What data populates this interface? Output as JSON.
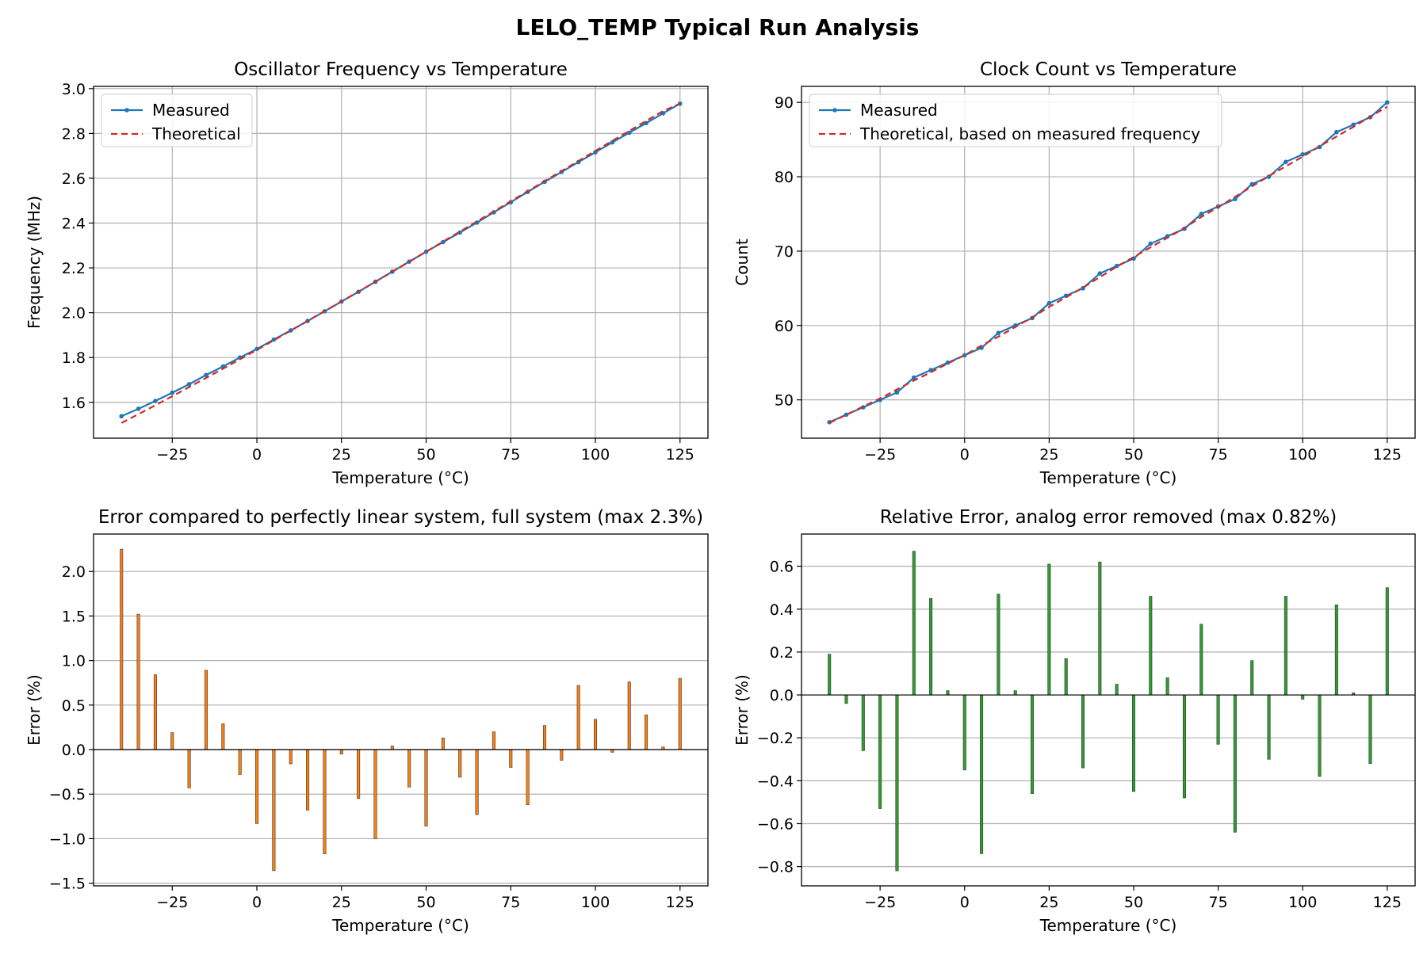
{
  "figure": {
    "title": "LELO_TEMP Typical Run Analysis"
  },
  "colors": {
    "measured": "#1f77b4",
    "theoretical": "#d62728",
    "error_bars": "#ff7f0e",
    "relative_bars": "#2ca02c",
    "grid": "#b0b0b0",
    "bar_edge": "#333333"
  },
  "chart_data": [
    {
      "type": "line",
      "title": "Oscillator Frequency vs Temperature",
      "xlabel": "Temperature (°C)",
      "ylabel": "Frequency (MHz)",
      "xlim": [
        -48.25,
        133.25
      ],
      "ylim": [
        1.44,
        3.01
      ],
      "xticks": [
        -25,
        0,
        25,
        50,
        75,
        100,
        125
      ],
      "xtick_labels": [
        "−25",
        "0",
        "25",
        "50",
        "75",
        "100",
        "125"
      ],
      "yticks": [
        1.6,
        1.8,
        2.0,
        2.2,
        2.4,
        2.6,
        2.8,
        3.0
      ],
      "ytick_labels": [
        "1.6",
        "1.8",
        "2.0",
        "2.2",
        "2.4",
        "2.6",
        "2.8",
        "3.0"
      ],
      "grid": "both",
      "legend": "upper-left",
      "x": [
        -40,
        -35,
        -30,
        -25,
        -20,
        -15,
        -10,
        -5,
        0,
        5,
        10,
        15,
        20,
        25,
        30,
        35,
        40,
        45,
        50,
        55,
        60,
        65,
        70,
        75,
        80,
        85,
        90,
        95,
        100,
        105,
        110,
        115,
        120,
        125
      ],
      "series": [
        {
          "name": "Measured",
          "style": "solid-marker",
          "values": [
            1.538,
            1.571,
            1.606,
            1.643,
            1.681,
            1.722,
            1.76,
            1.8,
            1.838,
            1.88,
            1.921,
            1.963,
            2.006,
            2.05,
            2.093,
            2.138,
            2.183,
            2.228,
            2.272,
            2.315,
            2.358,
            2.402,
            2.448,
            2.493,
            2.539,
            2.584,
            2.628,
            2.672,
            2.716,
            2.76,
            2.803,
            2.846,
            2.89,
            2.933
          ]
        },
        {
          "name": "Theoretical",
          "style": "dashed",
          "values": [
            1.508,
            1.547,
            1.587,
            1.627,
            1.668,
            1.709,
            1.75,
            1.792,
            1.834,
            1.877,
            1.92,
            1.963,
            2.007,
            2.05,
            2.094,
            2.138,
            2.183,
            2.227,
            2.272,
            2.317,
            2.362,
            2.407,
            2.452,
            2.497,
            2.542,
            2.587,
            2.632,
            2.677,
            2.722,
            2.767,
            2.811,
            2.856,
            2.9,
            2.933
          ]
        }
      ]
    },
    {
      "type": "line",
      "title": "Clock Count vs Temperature",
      "xlabel": "Temperature (°C)",
      "ylabel": "Count",
      "xlim": [
        -48.25,
        133.25
      ],
      "ylim": [
        44.85,
        92.15
      ],
      "xticks": [
        -25,
        0,
        25,
        50,
        75,
        100,
        125
      ],
      "xtick_labels": [
        "−25",
        "0",
        "25",
        "50",
        "75",
        "100",
        "125"
      ],
      "yticks": [
        50,
        60,
        70,
        80,
        90
      ],
      "ytick_labels": [
        "50",
        "60",
        "70",
        "80",
        "90"
      ],
      "grid": "both",
      "legend": "upper-left",
      "x": [
        -40,
        -35,
        -30,
        -25,
        -20,
        -15,
        -10,
        -5,
        0,
        5,
        10,
        15,
        20,
        25,
        30,
        35,
        40,
        45,
        50,
        55,
        60,
        65,
        70,
        75,
        80,
        85,
        90,
        95,
        100,
        105,
        110,
        115,
        120,
        125
      ],
      "series": [
        {
          "name": "Measured",
          "style": "solid-marker",
          "values": [
            47,
            48,
            49,
            50,
            51,
            53,
            54,
            55,
            56,
            57,
            59,
            60,
            61,
            63,
            64,
            65,
            67,
            68,
            69,
            71,
            72,
            73,
            75,
            76,
            77,
            79,
            80,
            82,
            83,
            84,
            86,
            87,
            88,
            90
          ]
        },
        {
          "name": "Theoretical, based on measured frequency",
          "style": "dashed",
          "values": [
            46.9,
            48.0,
            49.1,
            50.2,
            51.4,
            52.6,
            53.7,
            54.9,
            56.0,
            57.3,
            58.5,
            59.8,
            61.1,
            62.5,
            63.8,
            65.1,
            66.5,
            67.9,
            69.2,
            70.5,
            71.8,
            73.1,
            74.6,
            75.9,
            77.3,
            78.7,
            80.1,
            81.4,
            82.7,
            84.1,
            85.4,
            86.7,
            88.1,
            89.4
          ]
        }
      ]
    },
    {
      "type": "bar",
      "title": "Error compared to perfectly linear system, full system (max 2.3%)",
      "xlabel": "Temperature (°C)",
      "ylabel": "Error (%)",
      "xlim": [
        -48.25,
        133.25
      ],
      "ylim": [
        -1.53,
        2.42
      ],
      "xticks": [
        -25,
        0,
        25,
        50,
        75,
        100,
        125
      ],
      "xtick_labels": [
        "−25",
        "0",
        "25",
        "50",
        "75",
        "100",
        "125"
      ],
      "yticks": [
        -1.5,
        -1.0,
        -0.5,
        0.0,
        0.5,
        1.0,
        1.5,
        2.0
      ],
      "ytick_labels": [
        "−1.5",
        "−1.0",
        "−0.5",
        "0.0",
        "0.5",
        "1.0",
        "1.5",
        "2.0"
      ],
      "grid": "y",
      "bar_width": 0.8,
      "x": [
        -40,
        -35,
        -30,
        -25,
        -20,
        -15,
        -10,
        -5,
        0,
        5,
        10,
        15,
        20,
        25,
        30,
        35,
        40,
        45,
        50,
        55,
        60,
        65,
        70,
        75,
        80,
        85,
        90,
        95,
        100,
        105,
        110,
        115,
        120,
        125
      ],
      "values": [
        2.25,
        1.52,
        0.84,
        0.19,
        -0.43,
        0.89,
        0.29,
        -0.28,
        -0.83,
        -1.36,
        -0.16,
        -0.68,
        -1.17,
        -0.05,
        -0.55,
        -1.0,
        0.04,
        -0.42,
        -0.86,
        0.13,
        -0.31,
        -0.73,
        0.2,
        -0.2,
        -0.62,
        0.27,
        -0.12,
        0.72,
        0.34,
        -0.03,
        0.76,
        0.39,
        0.03,
        0.8
      ]
    },
    {
      "type": "bar",
      "title": "Relative Error, analog error removed (max 0.82%)",
      "xlabel": "Temperature (°C)",
      "ylabel": "Error (%)",
      "xlim": [
        -48.25,
        133.25
      ],
      "ylim": [
        -0.89,
        0.75
      ],
      "xticks": [
        -25,
        0,
        25,
        50,
        75,
        100,
        125
      ],
      "xtick_labels": [
        "−25",
        "0",
        "25",
        "50",
        "75",
        "100",
        "125"
      ],
      "yticks": [
        -0.8,
        -0.6,
        -0.4,
        -0.2,
        0.0,
        0.2,
        0.4,
        0.6
      ],
      "ytick_labels": [
        "−0.8",
        "−0.6",
        "−0.4",
        "−0.2",
        "0.0",
        "0.2",
        "0.4",
        "0.6"
      ],
      "grid": "y",
      "bar_width": 0.8,
      "x": [
        -40,
        -35,
        -30,
        -25,
        -20,
        -15,
        -10,
        -5,
        0,
        5,
        10,
        15,
        20,
        25,
        30,
        35,
        40,
        45,
        50,
        55,
        60,
        65,
        70,
        75,
        80,
        85,
        90,
        95,
        100,
        105,
        110,
        115,
        120,
        125
      ],
      "values": [
        0.19,
        -0.04,
        -0.26,
        -0.53,
        -0.82,
        0.67,
        0.45,
        0.02,
        -0.35,
        -0.74,
        0.47,
        0.02,
        -0.46,
        0.61,
        0.17,
        -0.34,
        0.62,
        0.05,
        -0.45,
        0.46,
        0.08,
        -0.48,
        0.33,
        -0.23,
        -0.64,
        0.16,
        -0.3,
        0.46,
        -0.02,
        -0.38,
        0.42,
        0.01,
        -0.32,
        0.5
      ]
    }
  ]
}
